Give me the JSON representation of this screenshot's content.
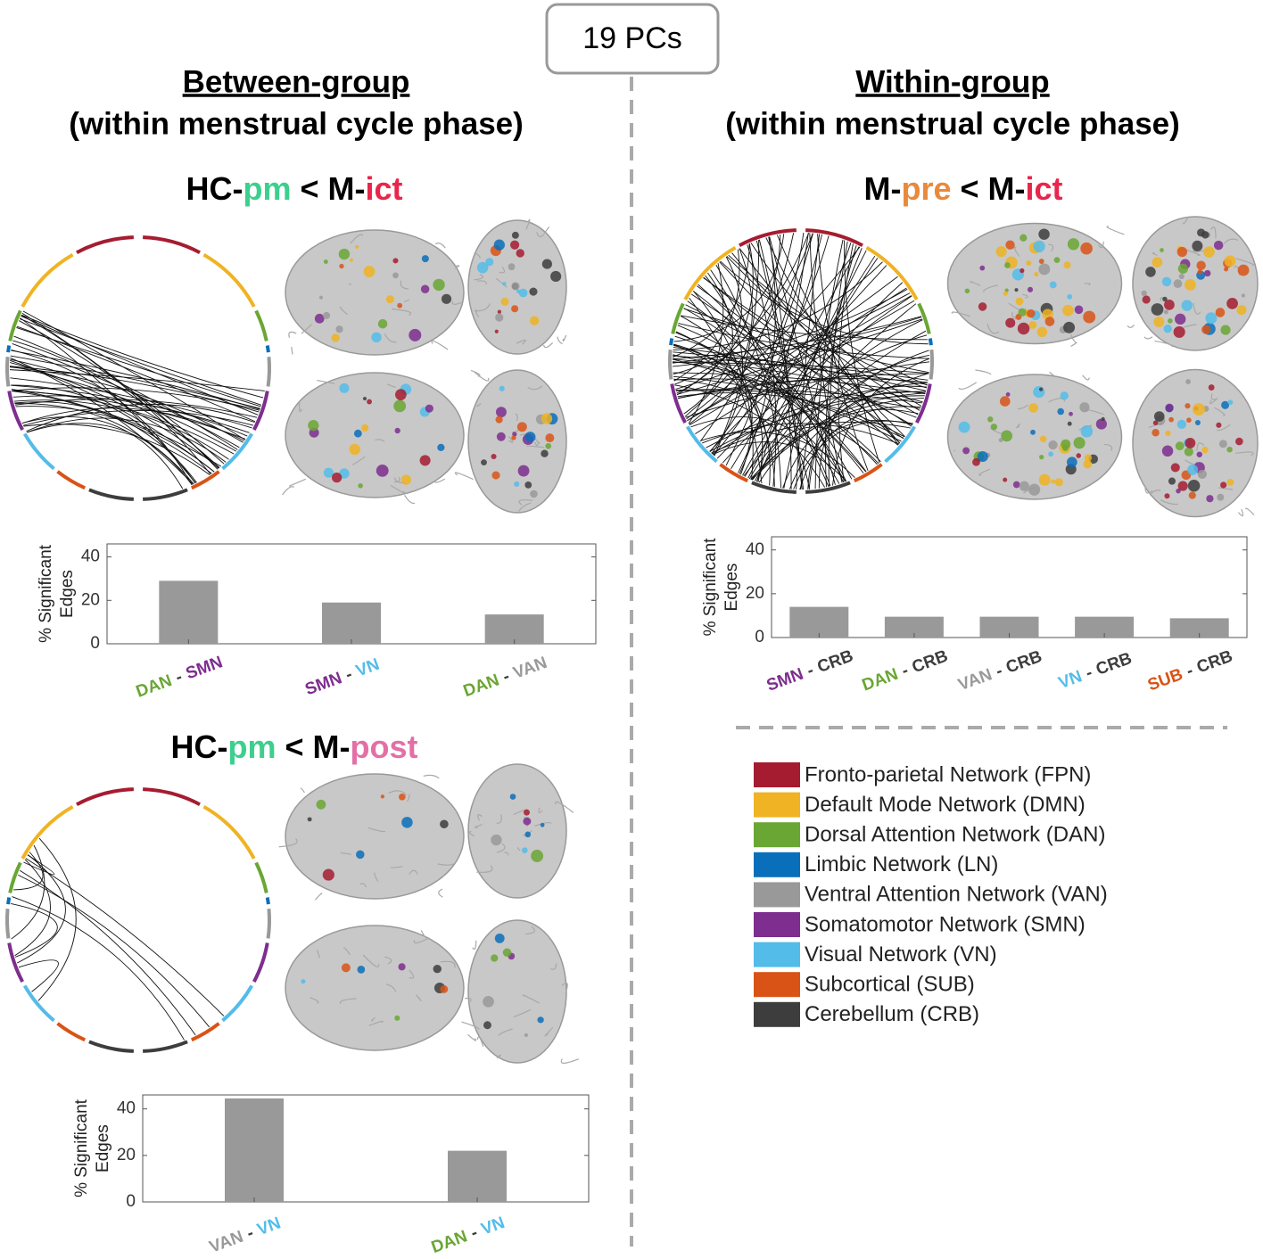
{
  "badge": "19 PCs",
  "columns": [
    {
      "heading": "Between-group",
      "subheading": "(within menstrual cycle phase)"
    },
    {
      "heading": "Within-group",
      "subheading": "(within menstrual cycle phase)"
    }
  ],
  "chart_data": [
    {
      "type": "bar",
      "title_parts": [
        {
          "text": "HC-",
          "color": "#000000"
        },
        {
          "text": "pm",
          "color": "#3ccf8e"
        },
        {
          "text": " < M-",
          "color": "#000000"
        },
        {
          "text": "ict",
          "color": "#e8264b"
        }
      ],
      "ylabel": [
        "% Significant",
        "Edges"
      ],
      "categories": [
        "DAN - SMN",
        "SMN - VN",
        "DAN - VAN"
      ],
      "category_colors": [
        [
          "#6aa633",
          "#3d3d3d",
          "#7d2e8e"
        ],
        [
          "#7d2e8e",
          "#3d3d3d",
          "#53bce9"
        ],
        [
          "#6aa633",
          "#3d3d3d",
          "#999999"
        ]
      ],
      "values": [
        29,
        19,
        13.5
      ],
      "color": "#999999",
      "ylim": [
        0,
        46
      ],
      "yticks": [
        0,
        20,
        40
      ]
    },
    {
      "type": "bar",
      "title_parts": [
        {
          "text": "M-",
          "color": "#000000"
        },
        {
          "text": "pre",
          "color": "#e88a3c"
        },
        {
          "text": " < M-",
          "color": "#000000"
        },
        {
          "text": "ict",
          "color": "#e8264b"
        }
      ],
      "ylabel": [
        "% Significant",
        "Edges"
      ],
      "categories": [
        "SMN - CRB",
        "DAN - CRB",
        "VAN - CRB",
        "VN - CRB",
        "SUB - CRB"
      ],
      "category_colors": [
        [
          "#7d2e8e",
          "#3d3d3d",
          "#3d3d3d"
        ],
        [
          "#6aa633",
          "#3d3d3d",
          "#3d3d3d"
        ],
        [
          "#999999",
          "#3d3d3d",
          "#3d3d3d"
        ],
        [
          "#53bce9",
          "#3d3d3d",
          "#3d3d3d"
        ],
        [
          "#d95316",
          "#3d3d3d",
          "#3d3d3d"
        ]
      ],
      "values": [
        14,
        9.5,
        9.5,
        9.5,
        8.8
      ],
      "color": "#999999",
      "ylim": [
        0,
        46
      ],
      "yticks": [
        0,
        20,
        40
      ]
    },
    {
      "type": "bar",
      "title_parts": [
        {
          "text": "HC-",
          "color": "#000000"
        },
        {
          "text": "pm",
          "color": "#3ccf8e"
        },
        {
          "text": " < M-",
          "color": "#000000"
        },
        {
          "text": "post",
          "color": "#e36fa6"
        }
      ],
      "ylabel": [
        "% Significant",
        "Edges"
      ],
      "categories": [
        "VAN - VN",
        "DAN - VN"
      ],
      "category_colors": [
        [
          "#999999",
          "#3d3d3d",
          "#53bce9"
        ],
        [
          "#6aa633",
          "#3d3d3d",
          "#53bce9"
        ]
      ],
      "values": [
        44.5,
        22
      ],
      "color": "#999999",
      "ylim": [
        0,
        46
      ],
      "yticks": [
        0,
        20,
        40
      ]
    }
  ],
  "legend": [
    {
      "label": "Fronto-parietal Network (FPN)",
      "color": "#a51c30"
    },
    {
      "label": "Default Mode Network (DMN)",
      "color": "#efb323"
    },
    {
      "label": "Dorsal Attention Network (DAN)",
      "color": "#6aa633"
    },
    {
      "label": "Limbic Network (LN)",
      "color": "#0a6fba"
    },
    {
      "label": "Ventral Attention Network (VAN)",
      "color": "#999999"
    },
    {
      "label": "Somatomotor Network (SMN)",
      "color": "#7d2e8e"
    },
    {
      "label": "Visual Network (VN)",
      "color": "#53bce9"
    },
    {
      "label": "Subcortical (SUB)",
      "color": "#d95316"
    },
    {
      "label": "Cerebellum (CRB)",
      "color": "#3d3d3d"
    }
  ]
}
